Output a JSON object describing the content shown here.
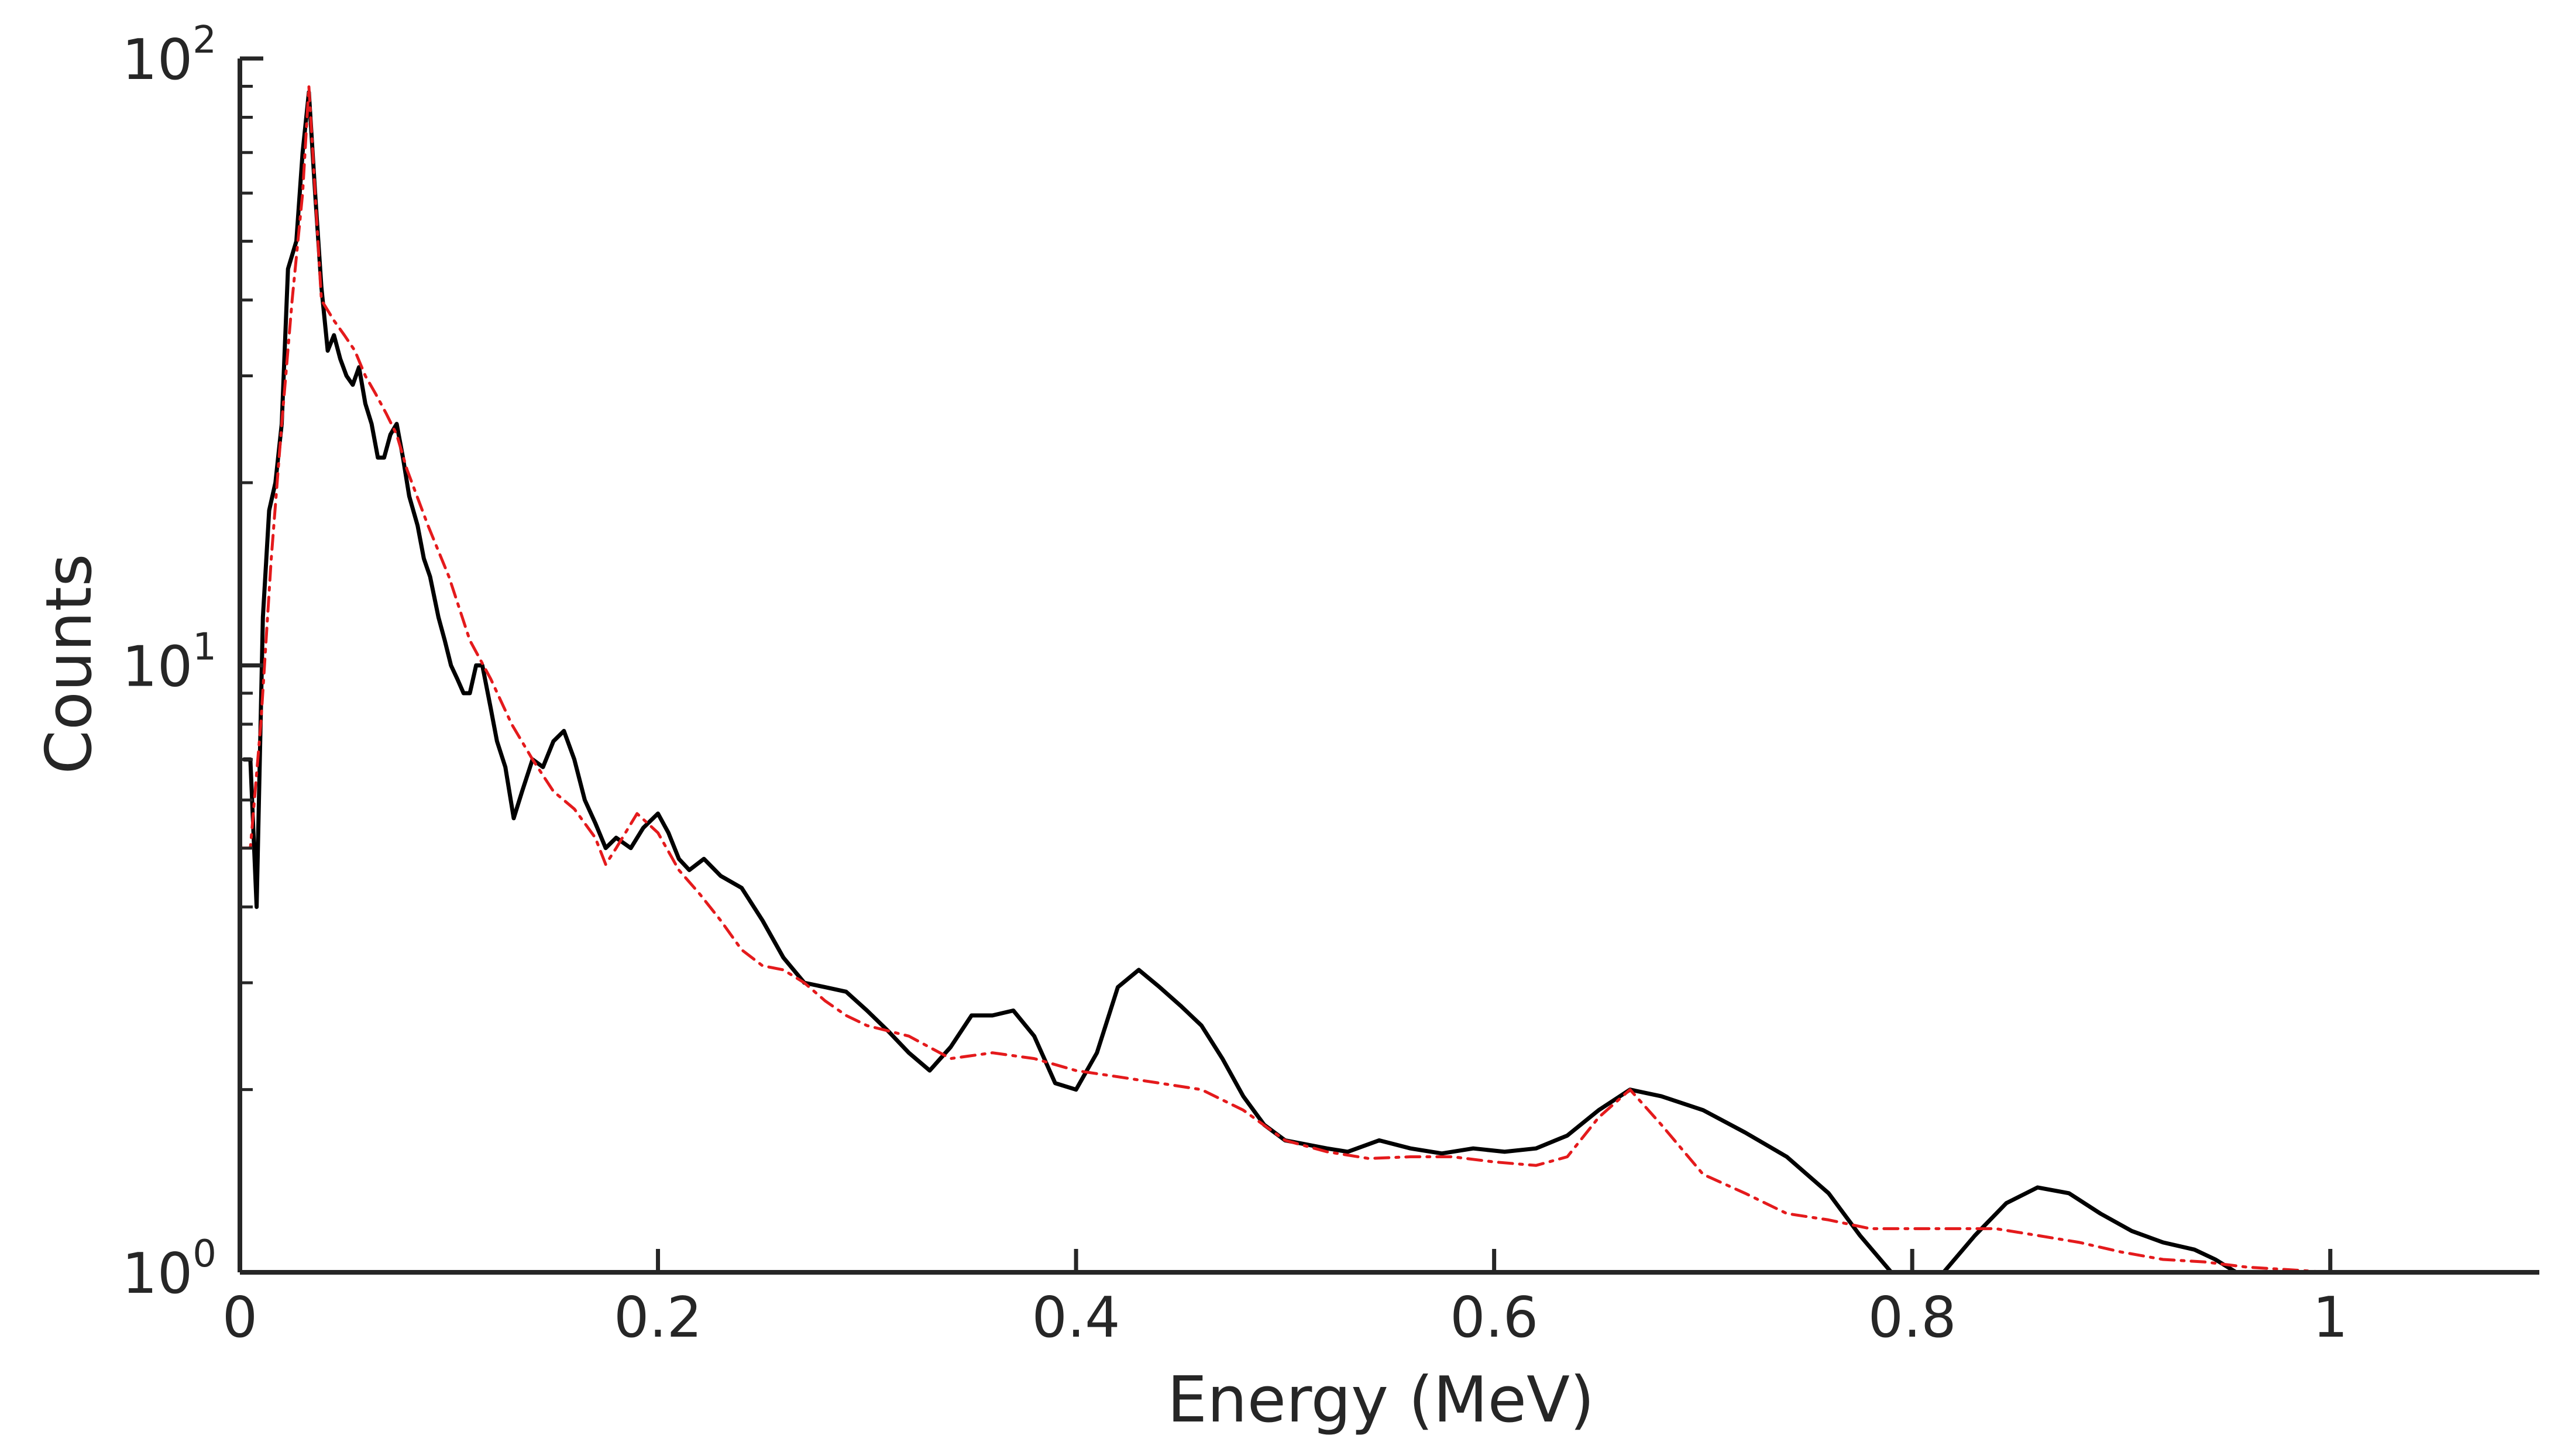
{
  "chart_data": {
    "type": "line",
    "xlabel": "Energy (MeV)",
    "ylabel": "Counts",
    "xlim": [
      0,
      1.1
    ],
    "ylim": [
      1,
      100
    ],
    "yscale": "log",
    "grid": false,
    "legend": "none",
    "x_ticks": [
      {
        "value": 0,
        "label": "0"
      },
      {
        "value": 0.2,
        "label": "0.2"
      },
      {
        "value": 0.4,
        "label": "0.4"
      },
      {
        "value": 0.6,
        "label": "0.6"
      },
      {
        "value": 0.8,
        "label": "0.8"
      },
      {
        "value": 1,
        "label": "1"
      }
    ],
    "y_ticks": [
      {
        "value": 1,
        "base": "10",
        "exp": "0"
      },
      {
        "value": 10,
        "base": "10",
        "exp": "1"
      },
      {
        "value": 100,
        "base": "10",
        "exp": "2"
      }
    ],
    "series": [
      {
        "color": "#000000",
        "style": "solid",
        "points": [
          [
            0.002,
            7
          ],
          [
            0.005,
            7
          ],
          [
            0.008,
            4
          ],
          [
            0.011,
            12
          ],
          [
            0.014,
            18
          ],
          [
            0.017,
            20
          ],
          [
            0.02,
            25
          ],
          [
            0.023,
            45
          ],
          [
            0.027,
            50
          ],
          [
            0.03,
            70
          ],
          [
            0.033,
            88
          ],
          [
            0.036,
            60
          ],
          [
            0.039,
            42
          ],
          [
            0.042,
            33
          ],
          [
            0.045,
            35
          ],
          [
            0.048,
            32
          ],
          [
            0.051,
            30
          ],
          [
            0.054,
            29
          ],
          [
            0.057,
            31
          ],
          [
            0.06,
            27
          ],
          [
            0.063,
            25
          ],
          [
            0.066,
            22
          ],
          [
            0.069,
            22
          ],
          [
            0.072,
            24
          ],
          [
            0.075,
            25
          ],
          [
            0.078,
            22
          ],
          [
            0.081,
            19
          ],
          [
            0.085,
            17
          ],
          [
            0.088,
            15
          ],
          [
            0.091,
            14
          ],
          [
            0.095,
            12
          ],
          [
            0.098,
            11
          ],
          [
            0.101,
            10
          ],
          [
            0.104,
            9.5
          ],
          [
            0.107,
            9
          ],
          [
            0.11,
            9
          ],
          [
            0.113,
            10
          ],
          [
            0.116,
            10
          ],
          [
            0.12,
            8.5
          ],
          [
            0.123,
            7.5
          ],
          [
            0.127,
            6.8
          ],
          [
            0.131,
            5.6
          ],
          [
            0.135,
            6.2
          ],
          [
            0.14,
            7
          ],
          [
            0.145,
            6.8
          ],
          [
            0.15,
            7.5
          ],
          [
            0.155,
            7.8
          ],
          [
            0.16,
            7
          ],
          [
            0.165,
            6
          ],
          [
            0.17,
            5.5
          ],
          [
            0.175,
            5
          ],
          [
            0.18,
            5.2
          ],
          [
            0.187,
            5
          ],
          [
            0.193,
            5.4
          ],
          [
            0.2,
            5.7
          ],
          [
            0.205,
            5.3
          ],
          [
            0.21,
            4.8
          ],
          [
            0.215,
            4.6
          ],
          [
            0.222,
            4.8
          ],
          [
            0.23,
            4.5
          ],
          [
            0.24,
            4.3
          ],
          [
            0.25,
            3.8
          ],
          [
            0.26,
            3.3
          ],
          [
            0.27,
            3
          ],
          [
            0.28,
            2.95
          ],
          [
            0.29,
            2.9
          ],
          [
            0.3,
            2.7
          ],
          [
            0.31,
            2.5
          ],
          [
            0.32,
            2.3
          ],
          [
            0.33,
            2.15
          ],
          [
            0.34,
            2.35
          ],
          [
            0.35,
            2.65
          ],
          [
            0.36,
            2.65
          ],
          [
            0.37,
            2.7
          ],
          [
            0.38,
            2.45
          ],
          [
            0.39,
            2.05
          ],
          [
            0.4,
            2.0
          ],
          [
            0.41,
            2.3
          ],
          [
            0.42,
            2.95
          ],
          [
            0.43,
            3.15
          ],
          [
            0.44,
            2.95
          ],
          [
            0.45,
            2.75
          ],
          [
            0.46,
            2.55
          ],
          [
            0.47,
            2.25
          ],
          [
            0.48,
            1.95
          ],
          [
            0.49,
            1.75
          ],
          [
            0.5,
            1.65
          ],
          [
            0.52,
            1.6
          ],
          [
            0.53,
            1.58
          ],
          [
            0.545,
            1.65
          ],
          [
            0.56,
            1.6
          ],
          [
            0.575,
            1.57
          ],
          [
            0.59,
            1.6
          ],
          [
            0.605,
            1.58
          ],
          [
            0.62,
            1.6
          ],
          [
            0.635,
            1.68
          ],
          [
            0.65,
            1.85
          ],
          [
            0.665,
            2.0
          ],
          [
            0.68,
            1.95
          ],
          [
            0.7,
            1.85
          ],
          [
            0.72,
            1.7
          ],
          [
            0.74,
            1.55
          ],
          [
            0.76,
            1.35
          ],
          [
            0.775,
            1.15
          ],
          [
            0.79,
            1.0
          ]
        ]
      },
      {
        "color": "#000000",
        "style": "solid",
        "points": [
          [
            0.815,
            1.0
          ],
          [
            0.83,
            1.15
          ],
          [
            0.845,
            1.3
          ],
          [
            0.86,
            1.38
          ],
          [
            0.875,
            1.35
          ],
          [
            0.89,
            1.25
          ],
          [
            0.905,
            1.17
          ],
          [
            0.92,
            1.12
          ],
          [
            0.935,
            1.09
          ],
          [
            0.945,
            1.05
          ],
          [
            0.955,
            1.0
          ]
        ]
      },
      {
        "color": "#e41a1c",
        "style": "dashdot",
        "points": [
          [
            0.0,
            5
          ],
          [
            0.005,
            5
          ],
          [
            0.01,
            8
          ],
          [
            0.015,
            15
          ],
          [
            0.02,
            25
          ],
          [
            0.025,
            40
          ],
          [
            0.03,
            60
          ],
          [
            0.033,
            90
          ],
          [
            0.036,
            60
          ],
          [
            0.039,
            40
          ],
          [
            0.045,
            37
          ],
          [
            0.05,
            35
          ],
          [
            0.055,
            33
          ],
          [
            0.06,
            30
          ],
          [
            0.065,
            28
          ],
          [
            0.07,
            26
          ],
          [
            0.075,
            24
          ],
          [
            0.08,
            21
          ],
          [
            0.09,
            17
          ],
          [
            0.1,
            14
          ],
          [
            0.11,
            11
          ],
          [
            0.12,
            9.5
          ],
          [
            0.13,
            8
          ],
          [
            0.14,
            7
          ],
          [
            0.15,
            6.2
          ],
          [
            0.16,
            5.8
          ],
          [
            0.17,
            5.2
          ],
          [
            0.175,
            4.7
          ],
          [
            0.18,
            5
          ],
          [
            0.19,
            5.7
          ],
          [
            0.2,
            5.3
          ],
          [
            0.21,
            4.6
          ],
          [
            0.22,
            4.2
          ],
          [
            0.23,
            3.8
          ],
          [
            0.24,
            3.4
          ],
          [
            0.25,
            3.2
          ],
          [
            0.26,
            3.15
          ],
          [
            0.27,
            3.0
          ],
          [
            0.28,
            2.8
          ],
          [
            0.29,
            2.65
          ],
          [
            0.3,
            2.55
          ],
          [
            0.32,
            2.45
          ],
          [
            0.34,
            2.25
          ],
          [
            0.36,
            2.3
          ],
          [
            0.38,
            2.25
          ],
          [
            0.4,
            2.15
          ],
          [
            0.42,
            2.1
          ],
          [
            0.44,
            2.05
          ],
          [
            0.46,
            2.0
          ],
          [
            0.48,
            1.85
          ],
          [
            0.5,
            1.65
          ],
          [
            0.52,
            1.58
          ],
          [
            0.54,
            1.54
          ],
          [
            0.56,
            1.55
          ],
          [
            0.58,
            1.55
          ],
          [
            0.6,
            1.52
          ],
          [
            0.62,
            1.5
          ],
          [
            0.635,
            1.55
          ],
          [
            0.65,
            1.8
          ],
          [
            0.665,
            2.0
          ],
          [
            0.68,
            1.75
          ],
          [
            0.7,
            1.45
          ],
          [
            0.72,
            1.35
          ],
          [
            0.74,
            1.25
          ],
          [
            0.76,
            1.22
          ],
          [
            0.78,
            1.18
          ],
          [
            0.8,
            1.18
          ],
          [
            0.82,
            1.18
          ],
          [
            0.84,
            1.18
          ],
          [
            0.86,
            1.15
          ],
          [
            0.88,
            1.12
          ],
          [
            0.9,
            1.08
          ],
          [
            0.92,
            1.05
          ],
          [
            0.94,
            1.04
          ],
          [
            0.96,
            1.02
          ],
          [
            0.98,
            1.01
          ],
          [
            1.0,
            1.0
          ]
        ]
      }
    ]
  }
}
